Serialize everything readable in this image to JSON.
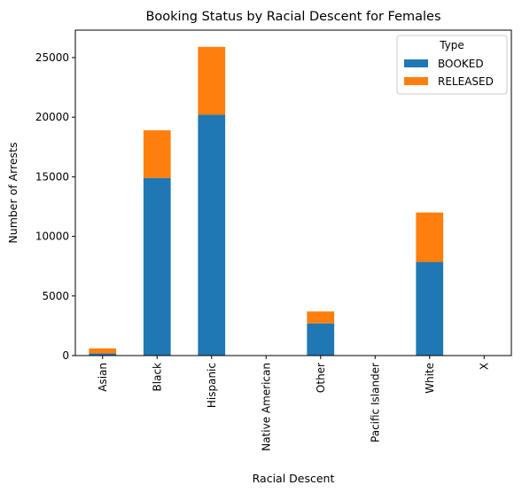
{
  "chart_data": {
    "type": "bar",
    "stacked": true,
    "title": "Booking Status by Racial Descent for Females",
    "xlabel": "Racial Descent",
    "ylabel": "Number of Arrests",
    "categories": [
      "Asian",
      "Black",
      "Hispanic",
      "Native American",
      "Other",
      "Pacific Islander",
      "White",
      "X"
    ],
    "series": [
      {
        "name": "BOOKED",
        "color": "#1f77b4",
        "values": [
          180,
          14900,
          20200,
          10,
          2700,
          5,
          7850,
          0
        ]
      },
      {
        "name": "RELEASED",
        "color": "#ff7f0e",
        "values": [
          420,
          4000,
          5700,
          5,
          1000,
          3,
          4150,
          0
        ]
      }
    ],
    "ylim": [
      0,
      27300
    ],
    "yticks": [
      0,
      5000,
      10000,
      15000,
      20000,
      25000
    ],
    "grid": false,
    "legend": {
      "title": "Type",
      "placement": "top-right"
    }
  }
}
